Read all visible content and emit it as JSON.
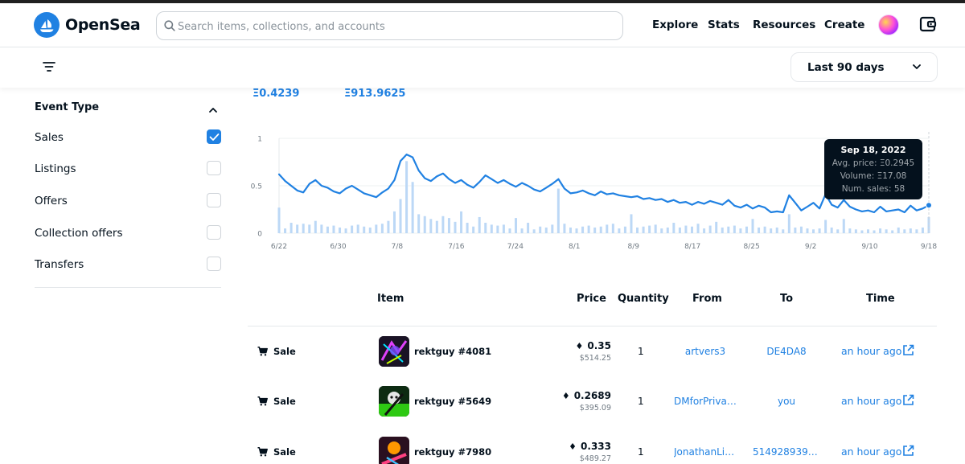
{
  "app": {
    "name": "OpenSea"
  },
  "search": {
    "placeholder": "Search items, collections, and accounts"
  },
  "nav": {
    "items": [
      "Explore",
      "Stats",
      "Resources",
      "Create"
    ]
  },
  "period": {
    "selected": "Last 90 days"
  },
  "sidebar": {
    "title": "Event Type",
    "filters": [
      {
        "label": "Sales",
        "checked": true
      },
      {
        "label": "Listings",
        "checked": false
      },
      {
        "label": "Offers",
        "checked": false
      },
      {
        "label": "Collection offers",
        "checked": false
      },
      {
        "label": "Transfers",
        "checked": false
      }
    ]
  },
  "stats": {
    "avg_price": "Ξ0.4239",
    "volume": "Ξ913.9625"
  },
  "chart_data": {
    "type": "line",
    "grid": true,
    "ylim": [
      0,
      1
    ],
    "y_ticks": [
      "1",
      "0.5",
      "0"
    ],
    "x_ticks": [
      "6/22",
      "6/30",
      "7/8",
      "7/16",
      "7/24",
      "8/1",
      "8/9",
      "8/17",
      "8/25",
      "9/2",
      "9/10",
      "9/18"
    ],
    "series": [
      {
        "kind": "line",
        "values": [
          0.62,
          0.55,
          0.5,
          0.45,
          0.43,
          0.52,
          0.56,
          0.5,
          0.48,
          0.44,
          0.42,
          0.47,
          0.5,
          0.46,
          0.42,
          0.4,
          0.38,
          0.43,
          0.47,
          0.56,
          0.76,
          0.83,
          0.8,
          0.66,
          0.58,
          0.55,
          0.6,
          0.63,
          0.57,
          0.53,
          0.56,
          0.51,
          0.48,
          0.54,
          0.61,
          0.57,
          0.53,
          0.56,
          0.52,
          0.49,
          0.53,
          0.5,
          0.46,
          0.44,
          0.48,
          0.52,
          0.57,
          0.47,
          0.42,
          0.43,
          0.45,
          0.42,
          0.4,
          0.44,
          0.41,
          0.42,
          0.4,
          0.39,
          0.38,
          0.39,
          0.36,
          0.37,
          0.35,
          0.36,
          0.33,
          0.35,
          0.32,
          0.33,
          0.3,
          0.33,
          0.31,
          0.34,
          0.32,
          0.3,
          0.35,
          0.29,
          0.27,
          0.3,
          0.26,
          0.29,
          0.27,
          0.22,
          0.23,
          0.22,
          0.4,
          0.32,
          0.24,
          0.28,
          0.32,
          0.26,
          0.41,
          0.3,
          0.27,
          0.35,
          0.28,
          0.25,
          0.23,
          0.24,
          0.22,
          0.28,
          0.23,
          0.24,
          0.25,
          0.22,
          0.29,
          0.24,
          0.26,
          0.2945
        ]
      },
      {
        "kind": "bar",
        "values": [
          0.27,
          0.05,
          0.11,
          0.09,
          0.1,
          0.09,
          0.13,
          0.09,
          0.07,
          0.08,
          0.06,
          0.05,
          0.08,
          0.09,
          0.07,
          0.06,
          0.09,
          0.1,
          0.13,
          0.23,
          0.36,
          0.76,
          0.54,
          0.2,
          0.18,
          0.15,
          0.13,
          0.18,
          0.16,
          0.12,
          0.23,
          0.11,
          0.07,
          0.17,
          0.11,
          0.09,
          0.08,
          0.09,
          0.05,
          0.16,
          0.05,
          0.11,
          0.04,
          0.07,
          0.06,
          0.09,
          0.47,
          0.1,
          0.06,
          0.05,
          0.07,
          0.08,
          0.06,
          0.07,
          0.09,
          0.1,
          0.05,
          0.07,
          0.2,
          0.06,
          0.07,
          0.08,
          0.09,
          0.05,
          0.06,
          0.11,
          0.06,
          0.08,
          0.07,
          0.1,
          0.05,
          0.08,
          0.12,
          0.06,
          0.07,
          0.08,
          0.05,
          0.07,
          0.15,
          0.06,
          0.07,
          0.05,
          0.06,
          0.04,
          0.2,
          0.06,
          0.07,
          0.05,
          0.04,
          0.05,
          0.14,
          0.06,
          0.04,
          0.15,
          0.05,
          0.04,
          0.03,
          0.04,
          0.03,
          0.05,
          0.04,
          0.03,
          0.06,
          0.04,
          0.05,
          0.04,
          0.06,
          0.17
        ]
      }
    ],
    "tooltip": {
      "date": "Sep 18, 2022",
      "avg_price": "Avg. price: Ξ0.2945",
      "volume": "Volume: Ξ17.08",
      "num_sales": "Num. sales: 58"
    }
  },
  "table": {
    "headers": {
      "item": "Item",
      "price": "Price",
      "quantity": "Quantity",
      "from": "From",
      "to": "To",
      "time": "Time"
    },
    "rows": [
      {
        "event": "Sale",
        "item": "rektguy #4081",
        "price_eth": "0.35",
        "price_usd": "$514.25",
        "quantity": "1",
        "from": "artvers3",
        "to": "DE4DA8",
        "time": "an hour ago"
      },
      {
        "event": "Sale",
        "item": "rektguy #5649",
        "price_eth": "0.2689",
        "price_usd": "$395.09",
        "quantity": "1",
        "from": "DMforPrivat...",
        "to": "you",
        "time": "an hour ago"
      },
      {
        "event": "Sale",
        "item": "rektguy #7980",
        "price_eth": "0.333",
        "price_usd": "$489.27",
        "quantity": "1",
        "from": "JonathanLit...",
        "to": "5149289397...",
        "time": "an hour ago"
      }
    ]
  },
  "icons": {
    "logo": "opensea-logo-icon",
    "search": "search-icon",
    "wallet": "wallet-icon",
    "filter": "filter-icon",
    "chevron_down": "chevron-down-icon",
    "chevron_up": "chevron-up-icon",
    "cart": "cart-icon",
    "eth": "eth-icon",
    "external_link": "external-link-icon"
  },
  "colors": {
    "accent": "#2081e2",
    "text": "#04111d",
    "muted": "#707a83",
    "border": "#e5e8eb",
    "bar": "#bcd8f6"
  }
}
